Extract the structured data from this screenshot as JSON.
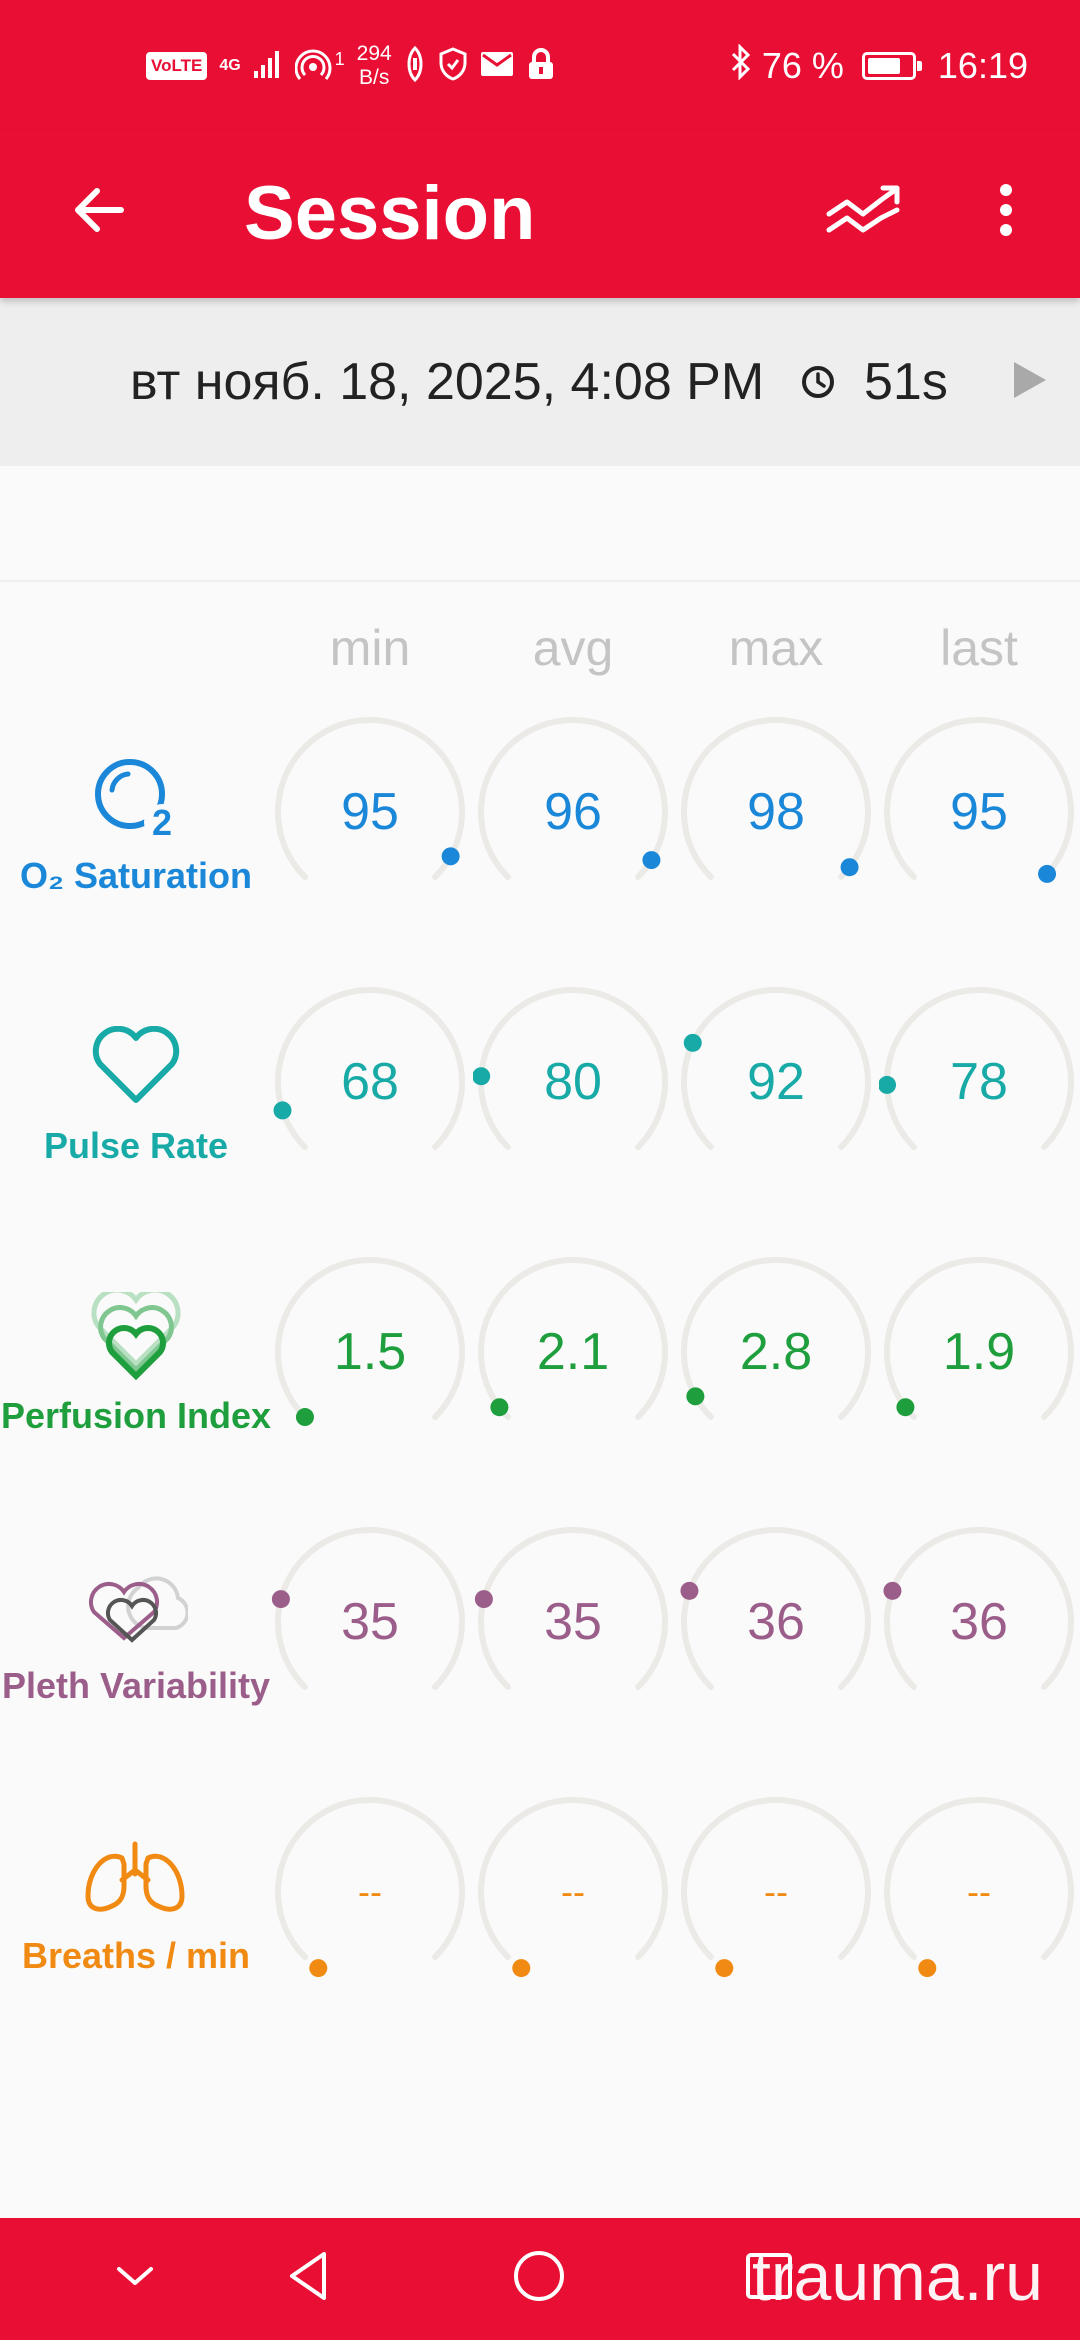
{
  "status_bar": {
    "volte": "VoLTE",
    "network": "4G",
    "hotspot_count": "1",
    "speed_value": "294",
    "speed_unit": "B/s",
    "battery_percent": "76 %",
    "battery_level": 0.76,
    "time": "16:19"
  },
  "toolbar": {
    "title": "Session",
    "back_icon": "arrow-back-icon",
    "trend_icon": "trend-compare-icon",
    "menu_icon": "more-vert-icon"
  },
  "session": {
    "date": "вт нояб. 18, 2025, 4:08 PM",
    "duration": "51s"
  },
  "columns": [
    "min",
    "avg",
    "max",
    "last"
  ],
  "metrics": [
    {
      "label": "O₂ Saturation",
      "icon": "o2-bubble-icon",
      "color": "#1a87d8",
      "values": [
        "95",
        "96",
        "98",
        "95"
      ],
      "levels": [
        0.94,
        0.95,
        0.97,
        0.99
      ]
    },
    {
      "label": "Pulse Rate",
      "icon": "heart-outline-icon",
      "color": "#18aaa6",
      "values": [
        "68",
        "80",
        "92",
        "78"
      ],
      "levels": [
        0.1,
        0.18,
        0.26,
        0.16
      ]
    },
    {
      "label": "Perfusion Index",
      "icon": "layered-hearts-icon",
      "color": "#1e9e3c",
      "values": [
        "1.5",
        "2.1",
        "2.8",
        "1.9"
      ],
      "levels": [
        0.0,
        0.03,
        0.06,
        0.03
      ]
    },
    {
      "label": "Pleth Variability",
      "icon": "pleth-hearts-icon",
      "color": "#9b5e8a",
      "values": [
        "35",
        "35",
        "36",
        "36"
      ],
      "levels": [
        0.22,
        0.22,
        0.24,
        0.24
      ]
    },
    {
      "label": "Breaths / min",
      "icon": "lungs-icon",
      "color": "#f08a12",
      "values": [
        "--",
        "--",
        "--",
        "--"
      ],
      "levels": [
        -0.04,
        -0.04,
        -0.04,
        -0.04
      ]
    }
  ],
  "colors": {
    "accent": "#e90e33",
    "track": "#ebeae6"
  },
  "nav": {
    "icons": [
      "chevron-down-icon",
      "back-triangle-icon",
      "home-circle-icon",
      "recents-square-icon"
    ]
  },
  "watermark": "trauma.ru"
}
